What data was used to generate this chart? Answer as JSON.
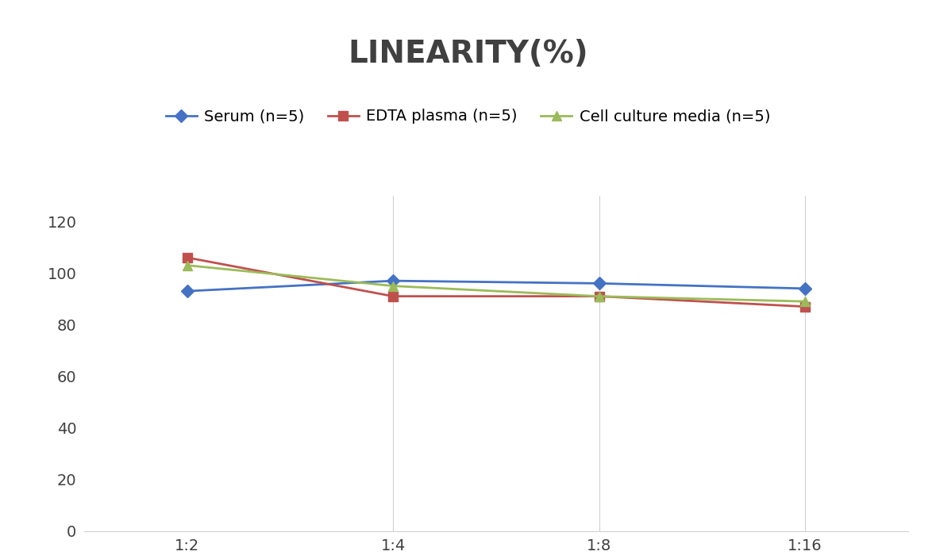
{
  "title": "LINEARITY(%)",
  "title_fontsize": 28,
  "title_fontweight": "bold",
  "title_color": "#404040",
  "x_labels": [
    "1:2",
    "1:4",
    "1:8",
    "1:16"
  ],
  "x_positions": [
    0,
    1,
    2,
    3
  ],
  "serum": [
    93,
    97,
    96,
    94
  ],
  "edta": [
    106,
    91,
    91,
    87
  ],
  "cell": [
    103,
    95,
    91,
    89
  ],
  "serum_label": "Serum (n=5)",
  "edta_label": "EDTA plasma (n=5)",
  "cell_label": "Cell culture media (n=5)",
  "serum_color": "#4472C4",
  "edta_color": "#C0504D",
  "cell_color": "#9BBB59",
  "ylim": [
    0,
    130
  ],
  "yticks": [
    0,
    20,
    40,
    60,
    80,
    100,
    120
  ],
  "marker_size": 8,
  "linewidth": 2,
  "background_color": "#ffffff",
  "grid_color": "#d0d0d0",
  "legend_fontsize": 14,
  "tick_fontsize": 14,
  "tick_color": "#404040"
}
